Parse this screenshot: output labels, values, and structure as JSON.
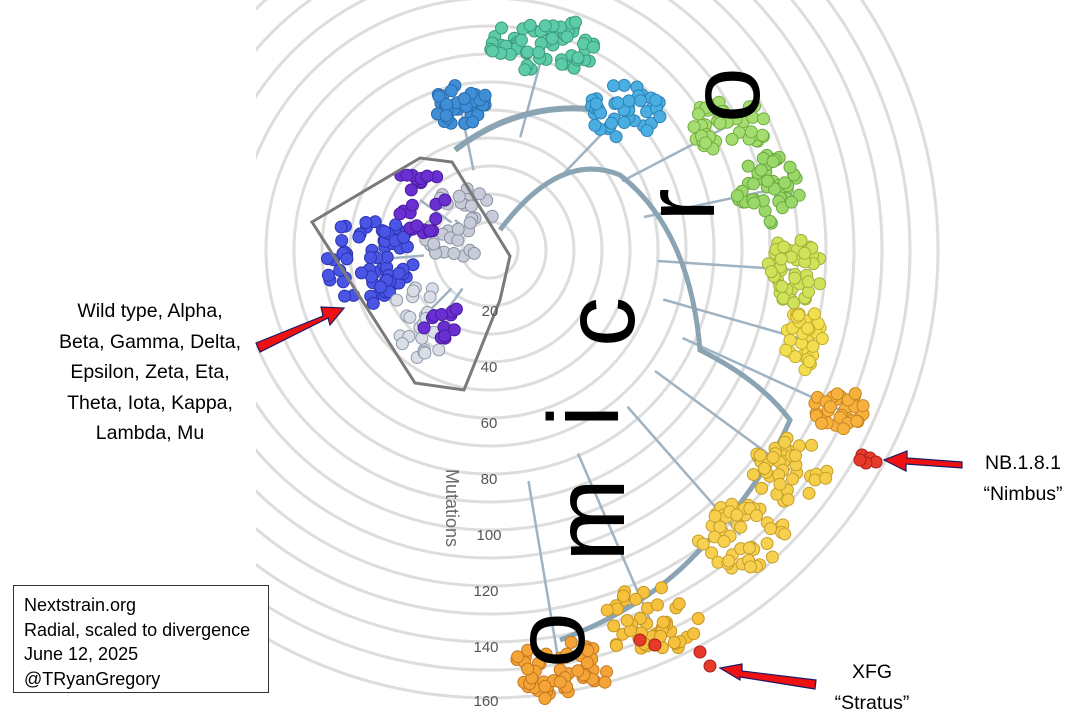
{
  "figure": {
    "big_label": "Omicron",
    "axis_title": "Mutations",
    "radial_ticks": [
      "20",
      "40",
      "60",
      "80",
      "100",
      "120",
      "140",
      "160"
    ]
  },
  "annotations": {
    "early_variants": [
      "Wild type, Alpha,",
      "Beta, Gamma, Delta,",
      "Epsilon, Zeta, Eta,",
      "Theta, Iota, Kappa,",
      "Lambda, Mu"
    ],
    "nimbus": [
      "NB.1.8.1",
      "“Nimbus”"
    ],
    "stratus": [
      "XFG",
      "“Stratus”"
    ]
  },
  "credit": {
    "lines": [
      "Nextstrain.org",
      "Radial, scaled to divergence",
      "June 12, 2025",
      "@TRyanGregory"
    ]
  },
  "colors": {
    "arrow": "#ee1111",
    "grid": "#dddddd",
    "hull": "#7a7a7a"
  }
}
